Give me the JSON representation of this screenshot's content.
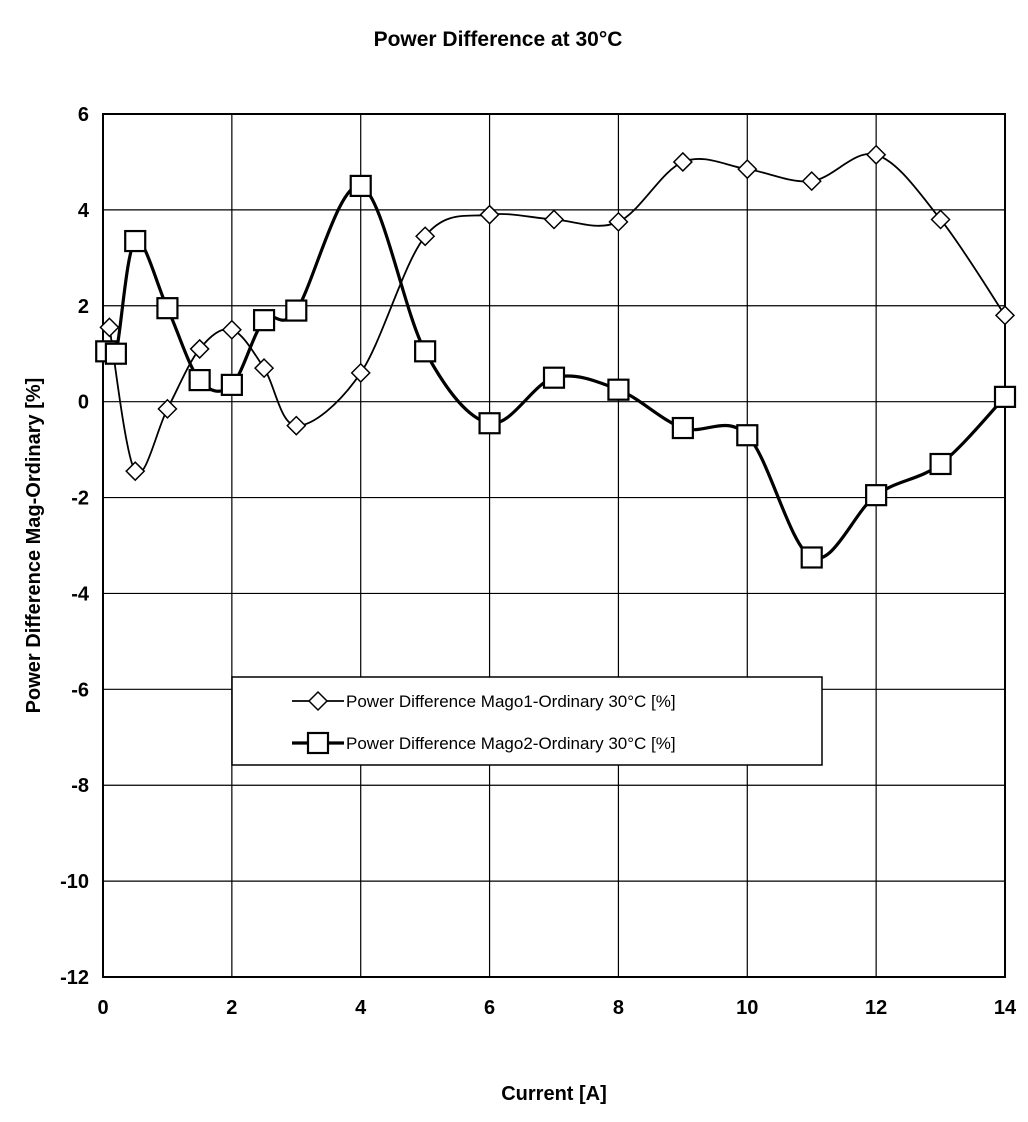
{
  "chart_data": {
    "type": "line",
    "title": "Power Difference at 30°C",
    "xlabel": "Current [A]",
    "ylabel": "Power Difference Mag-Ordinary [%]",
    "xlim": [
      0,
      14
    ],
    "ylim": [
      -12,
      6
    ],
    "xticks": [
      0,
      2,
      4,
      6,
      8,
      10,
      12,
      14
    ],
    "yticks": [
      6,
      4,
      2,
      0,
      -2,
      -4,
      -6,
      -8,
      -10,
      -12
    ],
    "grid": true,
    "legend_position": "center-left",
    "series": [
      {
        "name": "Power Difference Mago1-Ordinary 30°C [%]",
        "marker": "diamond",
        "x": [
          0.1,
          0.5,
          1.0,
          1.5,
          2.0,
          2.5,
          3.0,
          4.0,
          5.0,
          6.0,
          7.0,
          8.0,
          9.0,
          10.0,
          11.0,
          12.0,
          13.0,
          14.0
        ],
        "y": [
          1.55,
          -1.45,
          -0.15,
          1.1,
          1.5,
          0.7,
          -0.5,
          0.6,
          3.45,
          3.9,
          3.8,
          3.75,
          5.0,
          4.85,
          4.6,
          5.15,
          3.8,
          1.8
        ]
      },
      {
        "name": "Power Difference Mago2-Ordinary 30°C [%]",
        "marker": "square",
        "x": [
          0.05,
          0.2,
          0.5,
          1.0,
          1.5,
          2.0,
          2.5,
          3.0,
          4.0,
          5.0,
          6.0,
          7.0,
          8.0,
          9.0,
          10.0,
          11.0,
          12.0,
          13.0,
          14.0
        ],
        "y": [
          1.05,
          1.0,
          3.35,
          1.95,
          0.45,
          0.35,
          1.7,
          1.9,
          4.5,
          1.05,
          -0.45,
          0.5,
          0.25,
          -0.55,
          -0.7,
          -3.25,
          -1.95,
          -1.3,
          0.1
        ]
      }
    ]
  }
}
